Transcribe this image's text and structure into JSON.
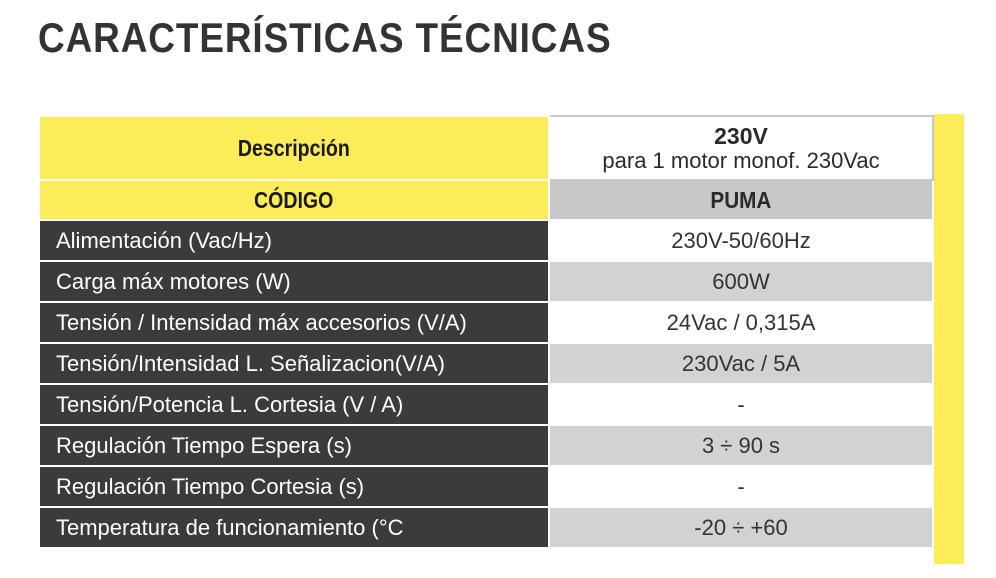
{
  "title": "CARACTERÍSTICAS TÉCNICAS",
  "header": {
    "description_label": "Descripción",
    "voltage": "230V",
    "voltage_sub": "para 1 motor monof. 230Vac"
  },
  "code_row": {
    "label": "CÓDIGO",
    "value": "PUMA"
  },
  "rows": [
    {
      "label": "Alimentación (Vac/Hz)",
      "value": "230V-50/60Hz"
    },
    {
      "label": "Carga máx motores (W)",
      "value": "600W"
    },
    {
      "label": "Tensión / Intensidad máx accesorios (V/A)",
      "value": "24Vac /  0,315A"
    },
    {
      "label": "Tensión/Intensidad L. Señalizacion(V/A)",
      "value": "230Vac / 5A"
    },
    {
      "label": "Tensión/Potencia L. Cortesia (V / A)",
      "value": "-"
    },
    {
      "label": "Regulación Tiempo Espera (s)",
      "value": "3 ÷ 90 s"
    },
    {
      "label": "Regulación Tiempo Cortesia (s)",
      "value": "-"
    },
    {
      "label": "Temperatura de funcionamiento (°C",
      "value": "-20 ÷ +60"
    }
  ],
  "colors": {
    "accent_yellow": "#fdec5a",
    "label_dark": "#3b3a3c",
    "value_grey": "#d2d2d2",
    "title_text": "#333333"
  }
}
